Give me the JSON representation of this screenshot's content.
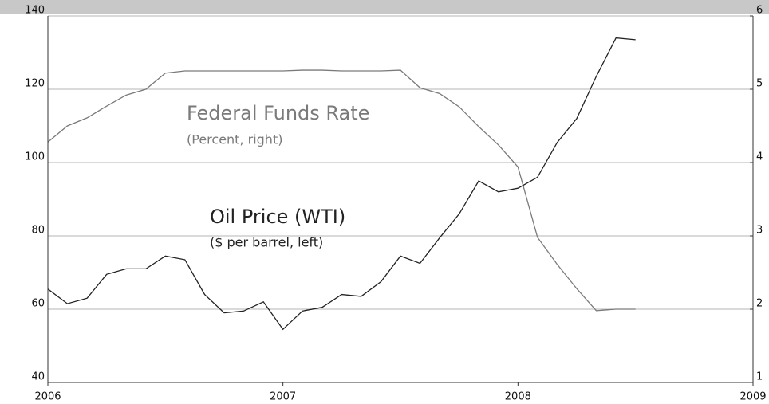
{
  "chart_data": {
    "type": "line",
    "annotations": [
      {
        "text": "Federal Funds Rate",
        "subtext": "(Percent, right)"
      },
      {
        "text": "Oil Price (WTI)",
        "subtext": "($ per barrel, left)"
      }
    ],
    "x": [
      2006,
      2006.083,
      2006.167,
      2006.25,
      2006.333,
      2006.417,
      2006.5,
      2006.583,
      2006.667,
      2006.75,
      2006.833,
      2006.917,
      2007,
      2007.083,
      2007.167,
      2007.25,
      2007.333,
      2007.417,
      2007.5,
      2007.583,
      2007.667,
      2007.75,
      2007.833,
      2007.917,
      2008,
      2008.083,
      2008.167,
      2008.25,
      2008.333,
      2008.417,
      2008.5
    ],
    "series": [
      {
        "axis": "y2",
        "color": "#7a7a7a",
        "values": [
          4.28,
          4.5,
          4.61,
          4.77,
          4.92,
          5.0,
          5.22,
          5.25,
          5.25,
          5.25,
          5.25,
          5.25,
          5.25,
          5.26,
          5.26,
          5.25,
          5.25,
          5.25,
          5.26,
          5.02,
          4.94,
          4.76,
          4.49,
          4.24,
          3.94,
          2.98,
          2.61,
          2.28,
          1.98,
          2.0,
          2.0
        ]
      },
      {
        "axis": "y",
        "color": "#222222",
        "values": [
          65.5,
          61.5,
          63,
          69.5,
          71,
          71,
          74.5,
          73.5,
          64,
          59,
          59.5,
          62,
          54.5,
          59.5,
          60.5,
          64,
          63.5,
          67.5,
          74.5,
          72.5,
          79.5,
          86,
          95,
          92,
          93,
          96,
          105.5,
          112,
          123.5,
          134,
          133.5
        ]
      }
    ],
    "xlim": [
      2006,
      2009
    ],
    "xticks": [
      2006,
      2007,
      2008,
      2009
    ],
    "ylim": [
      40,
      140
    ],
    "yticks": [
      40,
      60,
      80,
      100,
      120,
      140
    ],
    "y2lim": [
      1,
      6
    ],
    "y2ticks": [
      1,
      2,
      3,
      4,
      5,
      6
    ],
    "grid": true
  }
}
